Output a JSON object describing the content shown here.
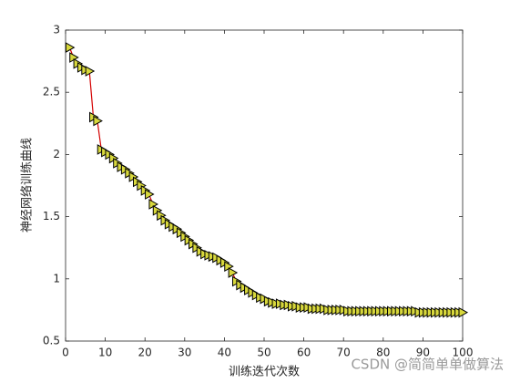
{
  "chart_data": {
    "type": "line",
    "xlabel": "训练迭代次数",
    "ylabel": "神经网络训练曲线",
    "watermark": "CSDN @简简单单做算法",
    "xlim": [
      0,
      100
    ],
    "xticks": [
      0,
      10,
      20,
      30,
      40,
      50,
      60,
      70,
      80,
      90,
      100
    ],
    "ylim": [
      0.5,
      3
    ],
    "yticks": [
      0.5,
      1,
      1.5,
      2,
      2.5,
      3
    ],
    "x": [
      1,
      2,
      3,
      4,
      5,
      6,
      7,
      8,
      9,
      10,
      11,
      12,
      13,
      14,
      15,
      16,
      17,
      18,
      19,
      20,
      21,
      22,
      23,
      24,
      25,
      26,
      27,
      28,
      29,
      30,
      31,
      32,
      33,
      34,
      35,
      36,
      37,
      38,
      39,
      40,
      41,
      42,
      43,
      44,
      45,
      46,
      47,
      48,
      49,
      50,
      51,
      52,
      53,
      54,
      55,
      56,
      57,
      58,
      59,
      60,
      61,
      62,
      63,
      64,
      65,
      66,
      67,
      68,
      69,
      70,
      71,
      72,
      73,
      74,
      75,
      76,
      77,
      78,
      79,
      80,
      81,
      82,
      83,
      84,
      85,
      86,
      87,
      88,
      89,
      90,
      91,
      92,
      93,
      94,
      95,
      96,
      97,
      98,
      99,
      100
    ],
    "series": [
      {
        "color": "#d40000",
        "marker_color": "#d8d83c",
        "values": [
          2.86,
          2.78,
          2.73,
          2.7,
          2.68,
          2.67,
          2.3,
          2.27,
          2.04,
          2.02,
          2.0,
          1.97,
          1.93,
          1.9,
          1.88,
          1.85,
          1.82,
          1.78,
          1.75,
          1.71,
          1.68,
          1.6,
          1.55,
          1.51,
          1.47,
          1.44,
          1.42,
          1.4,
          1.37,
          1.34,
          1.31,
          1.28,
          1.25,
          1.22,
          1.2,
          1.19,
          1.18,
          1.17,
          1.15,
          1.13,
          1.1,
          1.05,
          0.98,
          0.95,
          0.93,
          0.91,
          0.89,
          0.87,
          0.85,
          0.84,
          0.82,
          0.81,
          0.8,
          0.8,
          0.79,
          0.79,
          0.78,
          0.78,
          0.77,
          0.77,
          0.77,
          0.76,
          0.76,
          0.76,
          0.76,
          0.75,
          0.75,
          0.75,
          0.75,
          0.75,
          0.74,
          0.74,
          0.74,
          0.74,
          0.74,
          0.74,
          0.74,
          0.74,
          0.74,
          0.74,
          0.74,
          0.74,
          0.74,
          0.74,
          0.74,
          0.74,
          0.74,
          0.74,
          0.73,
          0.73,
          0.73,
          0.73,
          0.73,
          0.73,
          0.73,
          0.73,
          0.73,
          0.73,
          0.73,
          0.73
        ]
      }
    ]
  }
}
